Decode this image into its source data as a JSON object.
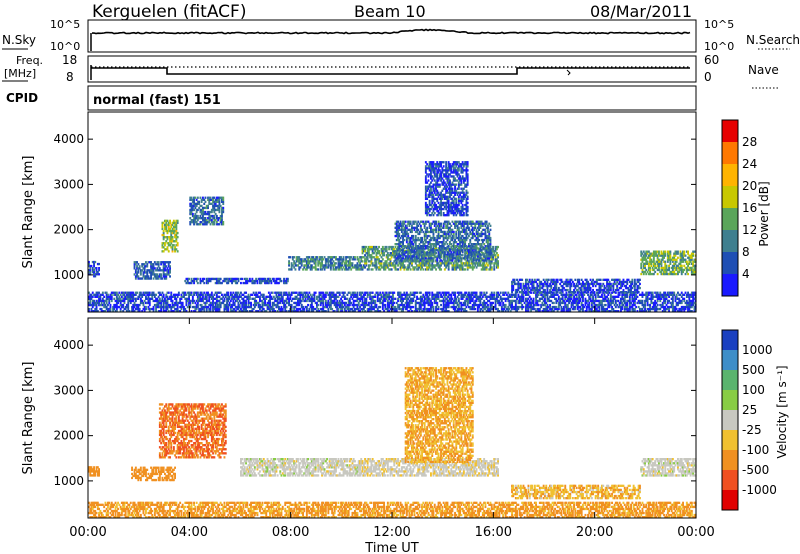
{
  "header": {
    "station": "Kerguelen (fitACF)",
    "beam": "Beam 10",
    "date": "08/Mar/2011"
  },
  "panels": {
    "nsky": {
      "left_label": "N.Sky",
      "right_label": "N.Search",
      "ticks": [
        "10^5",
        "10^0"
      ]
    },
    "freq": {
      "left_label_1": "Freq.",
      "left_label_2": "[MHz]",
      "right_label": "Nave",
      "left_ticks": [
        "18",
        "8"
      ],
      "right_ticks": [
        "60",
        "0"
      ]
    },
    "cpid": {
      "label": "CPID",
      "value": "normal (fast) 151"
    }
  },
  "colors": {
    "power": [
      "#1a1aff",
      "#1f4fb4",
      "#3f7f8f",
      "#5aa55a",
      "#c8c800",
      "#ffb400",
      "#ff7800",
      "#e60000"
    ],
    "velocity": [
      "#1a40c0",
      "#3e8ec8",
      "#5ab46e",
      "#88cc44",
      "#c8c8c0",
      "#f0c030",
      "#f09020",
      "#f05020",
      "#e00000"
    ]
  },
  "chart_data": [
    {
      "type": "heatmap",
      "name": "power",
      "xlabel": "Time UT",
      "ylabel": "Slant Range [km]",
      "xlim": [
        0,
        24
      ],
      "ylim": [
        180,
        4600
      ],
      "y_ticks": [
        "1000",
        "2000",
        "3000",
        "4000"
      ],
      "colorbar": {
        "label": "Power [dB]",
        "ticks": [
          "4",
          "8",
          "12",
          "16",
          "20",
          "24",
          "28"
        ]
      },
      "echo_regions": [
        {
          "t": [
            0.0,
            0.4
          ],
          "r": [
            950,
            1300
          ],
          "value": 6
        },
        {
          "t": [
            1.8,
            3.2
          ],
          "r": [
            900,
            1300
          ],
          "value": 7
        },
        {
          "t": [
            2.9,
            3.5
          ],
          "r": [
            1500,
            2200
          ],
          "value": 16
        },
        {
          "t": [
            4.0,
            5.3
          ],
          "r": [
            2100,
            2700
          ],
          "value": 8
        },
        {
          "t": [
            3.8,
            7.9
          ],
          "r": [
            800,
            900
          ],
          "value": 5
        },
        {
          "t": [
            7.9,
            10.8
          ],
          "r": [
            1100,
            1400
          ],
          "value": 10
        },
        {
          "t": [
            10.8,
            16.2
          ],
          "r": [
            1100,
            1600
          ],
          "value": 12
        },
        {
          "t": [
            12.1,
            15.9
          ],
          "r": [
            1300,
            2200
          ],
          "value": 8
        },
        {
          "t": [
            13.3,
            15.0
          ],
          "r": [
            2300,
            3500
          ],
          "value": 5
        },
        {
          "t": [
            16.7,
            21.8
          ],
          "r": [
            600,
            900
          ],
          "value": 5
        },
        {
          "t": [
            21.8,
            24.0
          ],
          "r": [
            1000,
            1500
          ],
          "value": 14
        },
        {
          "t": [
            0.0,
            24.0
          ],
          "r": [
            180,
            600
          ],
          "value": 5
        }
      ]
    },
    {
      "type": "heatmap",
      "name": "velocity",
      "xlabel": "Time UT",
      "ylabel": "Slant Range [km]",
      "xlim": [
        0,
        24
      ],
      "ylim": [
        180,
        4600
      ],
      "y_ticks": [
        "1000",
        "2000",
        "3000",
        "4000"
      ],
      "colorbar": {
        "label": "Velocity [m s⁻¹]",
        "ticks": [
          "1000",
          "500",
          "100",
          "25",
          "-25",
          "-100",
          "-500",
          "-1000"
        ]
      },
      "echo_regions": [
        {
          "t": [
            0.0,
            0.4
          ],
          "r": [
            1100,
            1300
          ],
          "value": -150
        },
        {
          "t": [
            1.7,
            3.4
          ],
          "r": [
            1000,
            1300
          ],
          "value": -200
        },
        {
          "t": [
            2.8,
            5.4
          ],
          "r": [
            1500,
            2700
          ],
          "value": -300
        },
        {
          "t": [
            6.0,
            10.8
          ],
          "r": [
            1100,
            1500
          ],
          "value": 0
        },
        {
          "t": [
            10.8,
            16.2
          ],
          "r": [
            1100,
            1500
          ],
          "value": -10
        },
        {
          "t": [
            12.5,
            15.2
          ],
          "r": [
            1400,
            3500
          ],
          "value": -60
        },
        {
          "t": [
            16.7,
            21.8
          ],
          "r": [
            600,
            900
          ],
          "value": -50
        },
        {
          "t": [
            21.8,
            24.0
          ],
          "r": [
            1100,
            1500
          ],
          "value": 0
        },
        {
          "t": [
            0.0,
            24.0
          ],
          "r": [
            180,
            500
          ],
          "value": -80
        }
      ]
    }
  ],
  "x_ticks": [
    "00:00",
    "04:00",
    "08:00",
    "12:00",
    "16:00",
    "20:00",
    "00:00"
  ]
}
